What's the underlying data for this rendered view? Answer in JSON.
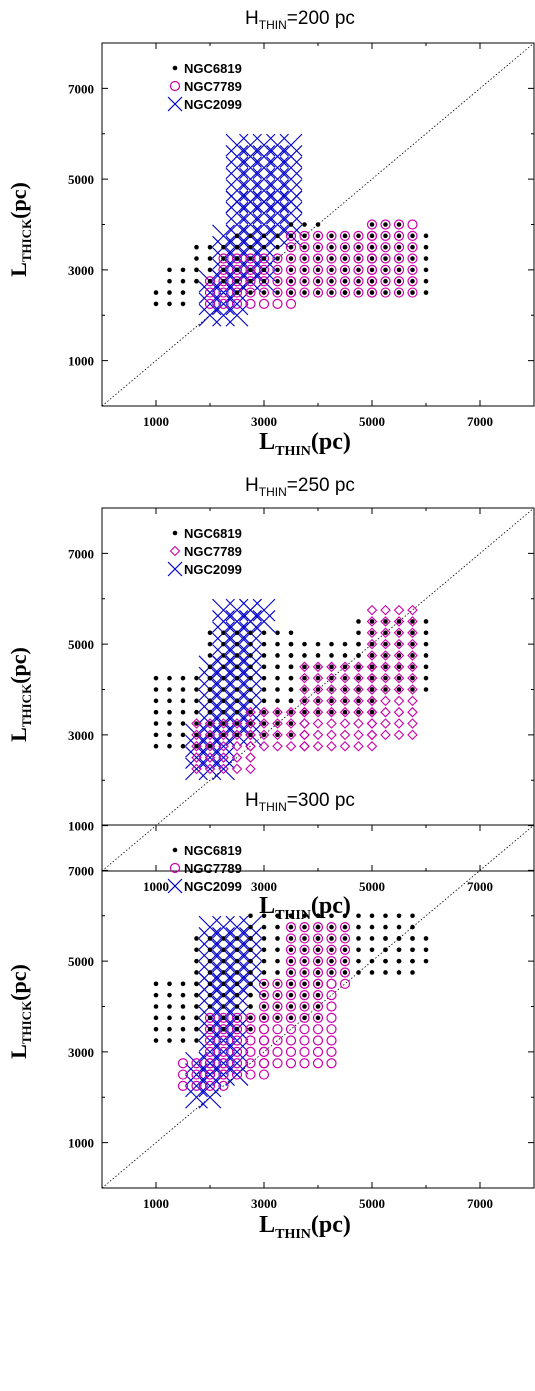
{
  "chart_data": [
    {
      "type": "scatter",
      "title": {
        "main": "H",
        "sub": "THIN",
        "rest": "=200 pc"
      },
      "xlabel": {
        "main": "L",
        "sub": "THIN",
        "rest": "(pc)"
      },
      "ylabel": {
        "main": "L",
        "sub": "THICK",
        "rest": "(pc)"
      },
      "xlim": [
        0,
        8000
      ],
      "ylim": [
        0,
        8000
      ],
      "xticks": [
        "1000",
        "3000",
        "5000",
        "7000"
      ],
      "yticks": [
        "1000",
        "3000",
        "5000",
        "7000"
      ],
      "diagonal": true,
      "legend_position": "top-left",
      "series": [
        {
          "name": "NGC6819",
          "marker": "dot",
          "color": "#000000",
          "regions": [
            {
              "x": [
                1000,
                1500
              ],
              "y": [
                2250,
                2500
              ]
            },
            {
              "x": [
                1250,
                1750
              ],
              "y": [
                2750,
                3000
              ]
            },
            {
              "x": [
                1750,
                2500
              ],
              "y": [
                2750,
                3500
              ]
            },
            {
              "x": [
                2500,
                4500
              ],
              "y": [
                2500,
                3750
              ]
            },
            {
              "x": [
                4500,
                6000
              ],
              "y": [
                2500,
                3750
              ]
            },
            {
              "x": [
                3500,
                4000
              ],
              "y": [
                4000,
                4000
              ]
            },
            {
              "x": [
                5000,
                5500
              ],
              "y": [
                4000,
                4000
              ]
            }
          ]
        },
        {
          "name": "NGC7789",
          "marker": "circle",
          "color": "#cc00aa",
          "regions": [
            {
              "x": [
                2000,
                3500
              ],
              "y": [
                2250,
                2750
              ]
            },
            {
              "x": [
                2250,
                3250
              ],
              "y": [
                3000,
                3250
              ]
            },
            {
              "x": [
                3500,
                5000
              ],
              "y": [
                2500,
                3750
              ]
            },
            {
              "x": [
                5000,
                5750
              ],
              "y": [
                2500,
                4000
              ]
            }
          ]
        },
        {
          "name": "NGC2099",
          "marker": "cross",
          "color": "#0000cc",
          "regions": [
            {
              "x": [
                2000,
                2500
              ],
              "y": [
                2000,
                2750
              ]
            },
            {
              "x": [
                2250,
                3000
              ],
              "y": [
                2750,
                3750
              ]
            },
            {
              "x": [
                2500,
                3500
              ],
              "y": [
                3750,
                4500
              ]
            },
            {
              "x": [
                2500,
                3500
              ],
              "y": [
                4500,
                5750
              ]
            }
          ]
        }
      ]
    },
    {
      "type": "scatter",
      "title": {
        "main": "H",
        "sub": "THIN",
        "rest": "=250 pc"
      },
      "xlabel": {
        "main": "L",
        "sub": "THIN",
        "rest": "(pc)"
      },
      "ylabel": {
        "main": "L",
        "sub": "THICK",
        "rest": "(pc)"
      },
      "xlim": [
        0,
        8000
      ],
      "ylim": [
        0,
        8000
      ],
      "xticks": [
        "1000",
        "3000",
        "5000",
        "7000"
      ],
      "yticks": [
        "1000",
        "3000",
        "5000",
        "7000"
      ],
      "diagonal": true,
      "legend_position": "top-left",
      "series": [
        {
          "name": "NGC6819",
          "marker": "dot",
          "color": "#000000",
          "regions": [
            {
              "x": [
                1000,
                2000
              ],
              "y": [
                2750,
                4250
              ]
            },
            {
              "x": [
                2000,
                3500
              ],
              "y": [
                3000,
                5250
              ]
            },
            {
              "x": [
                3500,
                5000
              ],
              "y": [
                3500,
                5000
              ]
            },
            {
              "x": [
                4750,
                6000
              ],
              "y": [
                4000,
                5500
              ]
            }
          ]
        },
        {
          "name": "NGC7789",
          "marker": "diamond",
          "color": "#cc00aa",
          "regions": [
            {
              "x": [
                1750,
                2750
              ],
              "y": [
                2250,
                3250
              ]
            },
            {
              "x": [
                2750,
                3750
              ],
              "y": [
                2750,
                3500
              ]
            },
            {
              "x": [
                3750,
                5000
              ],
              "y": [
                2750,
                4500
              ]
            },
            {
              "x": [
                5000,
                5750
              ],
              "y": [
                3000,
                5750
              ]
            }
          ]
        },
        {
          "name": "NGC2099",
          "marker": "cross",
          "color": "#0000cc",
          "regions": [
            {
              "x": [
                1750,
                2250
              ],
              "y": [
                2250,
                3000
              ]
            },
            {
              "x": [
                2000,
                2750
              ],
              "y": [
                3000,
                4500
              ]
            },
            {
              "x": [
                2250,
                2750
              ],
              "y": [
                4500,
                5750
              ]
            },
            {
              "x": [
                2750,
                3000
              ],
              "y": [
                5500,
                5750
              ]
            }
          ]
        }
      ]
    },
    {
      "type": "scatter",
      "title": {
        "main": "H",
        "sub": "THIN",
        "rest": "=300 pc"
      },
      "xlabel": {
        "main": "L",
        "sub": "THIN",
        "rest": "(pc)"
      },
      "ylabel": {
        "main": "L",
        "sub": "THICK",
        "rest": "(pc)"
      },
      "xlim": [
        0,
        8000
      ],
      "ylim": [
        0,
        8000
      ],
      "xticks": [
        "1000",
        "3000",
        "5000",
        "7000"
      ],
      "yticks": [
        "1000",
        "3000",
        "5000",
        "7000"
      ],
      "diagonal": true,
      "legend_position": "top-left",
      "series": [
        {
          "name": "NGC6819",
          "marker": "dot",
          "color": "#000000",
          "regions": [
            {
              "x": [
                1000,
                1750
              ],
              "y": [
                3250,
                4500
              ]
            },
            {
              "x": [
                1750,
                2750
              ],
              "y": [
                3500,
                5500
              ]
            },
            {
              "x": [
                2750,
                4000
              ],
              "y": [
                3750,
                6000
              ]
            },
            {
              "x": [
                4000,
                5750
              ],
              "y": [
                4750,
                6000
              ]
            },
            {
              "x": [
                5250,
                6000
              ],
              "y": [
                5000,
                5500
              ]
            }
          ]
        },
        {
          "name": "NGC7789",
          "marker": "circle",
          "color": "#cc00aa",
          "regions": [
            {
              "x": [
                1500,
                2250
              ],
              "y": [
                2250,
                2750
              ]
            },
            {
              "x": [
                2000,
                3000
              ],
              "y": [
                2500,
                3750
              ]
            },
            {
              "x": [
                3000,
                4250
              ],
              "y": [
                2750,
                4500
              ]
            },
            {
              "x": [
                3500,
                4500
              ],
              "y": [
                4500,
                5750
              ]
            }
          ]
        },
        {
          "name": "NGC2099",
          "marker": "cross",
          "color": "#0000cc",
          "regions": [
            {
              "x": [
                1750,
                2000
              ],
              "y": [
                2000,
                2750
              ]
            },
            {
              "x": [
                2000,
                2500
              ],
              "y": [
                2500,
                4500
              ]
            },
            {
              "x": [
                2000,
                2750
              ],
              "y": [
                4500,
                5750
              ]
            }
          ]
        }
      ]
    }
  ]
}
